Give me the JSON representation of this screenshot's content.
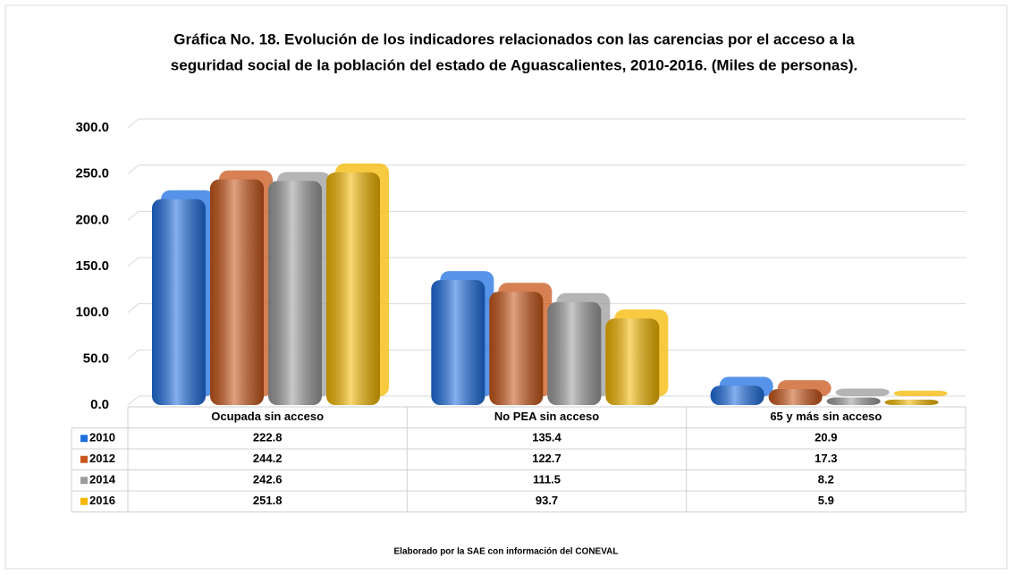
{
  "chart_data": {
    "type": "bar",
    "title": [
      "Gráfica No. 18. Evolución de los indicadores relacionados con las carencias por el acceso a la",
      "seguridad social de la población del estado de Aguascalientes, 2010-2016. (Miles de personas)."
    ],
    "categories": [
      "Ocupada sin acceso",
      "No PEA sin acceso",
      "65 y más sin acceso"
    ],
    "series": [
      {
        "name": "2010",
        "color": "#1f6fe0",
        "values": [
          222.8,
          135.4,
          20.9
        ]
      },
      {
        "name": "2012",
        "color": "#c8561a",
        "values": [
          244.2,
          122.7,
          17.3
        ]
      },
      {
        "name": "2014",
        "color": "#9c9c9c",
        "values": [
          242.6,
          111.5,
          8.2
        ]
      },
      {
        "name": "2016",
        "color": "#f5b800",
        "values": [
          251.8,
          93.7,
          5.9
        ]
      }
    ],
    "ylim": [
      0,
      300
    ],
    "yticks": [
      {
        "value": 0,
        "label": "0.0"
      },
      {
        "value": 50,
        "label": "50.0"
      },
      {
        "value": 100,
        "label": "100.0"
      },
      {
        "value": 150,
        "label": "150.0"
      },
      {
        "value": 200,
        "label": "200.0"
      },
      {
        "value": 250,
        "label": "250.0"
      },
      {
        "value": 300,
        "label": "300.0"
      }
    ],
    "grid": true,
    "source": "Elaborado por la SAE con información del CONEVAL"
  }
}
